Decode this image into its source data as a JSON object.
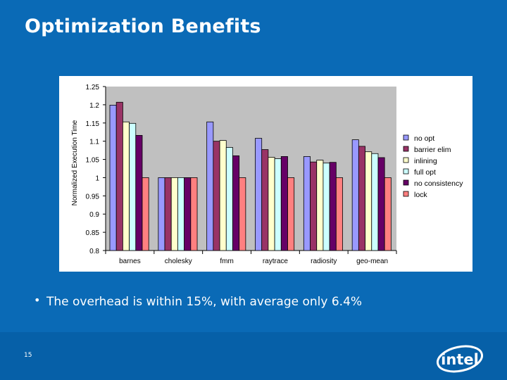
{
  "slide": {
    "title": "Optimization Benefits",
    "bullet": "The overhead is within 15%, with average only 6.4%",
    "page_number": "15",
    "logo_text": "intel"
  },
  "colors": {
    "background": "#0a6ab6",
    "footer": "#0660a8",
    "panel": "#ffffff",
    "plot_bg": "#c0c0c0"
  },
  "chart_data": {
    "type": "bar",
    "title": "",
    "xlabel": "",
    "ylabel": "Normalized Execution Time",
    "ylim": [
      0.8,
      1.25
    ],
    "yticks": [
      0.8,
      0.85,
      0.9,
      0.95,
      1,
      1.05,
      1.1,
      1.15,
      1.2,
      1.25
    ],
    "ytick_labels": [
      "0.8",
      "0.85",
      "0.9",
      "0.95",
      "1",
      "1.05",
      "1.1",
      "1.15",
      "1.2",
      "1.25"
    ],
    "grid": false,
    "legend_position": "right",
    "categories": [
      "barnes",
      "cholesky",
      "fmm",
      "raytrace",
      "radiosity",
      "geo-mean"
    ],
    "series": [
      {
        "name": "no opt",
        "color": "#9999ff",
        "values": [
          1.199,
          1.0,
          1.153,
          1.108,
          1.058,
          1.104
        ]
      },
      {
        "name": "barrier elim",
        "color": "#993366",
        "values": [
          1.207,
          1.0,
          1.1,
          1.077,
          1.043,
          1.086
        ]
      },
      {
        "name": "inlining",
        "color": "#ffffcc",
        "values": [
          1.153,
          1.0,
          1.102,
          1.056,
          1.048,
          1.071
        ]
      },
      {
        "name": "full opt",
        "color": "#ccffff",
        "values": [
          1.149,
          1.0,
          1.083,
          1.052,
          1.04,
          1.066
        ]
      },
      {
        "name": "no consistency",
        "color": "#660066",
        "values": [
          1.116,
          1.0,
          1.06,
          1.058,
          1.042,
          1.055
        ]
      },
      {
        "name": "lock",
        "color": "#ff8080",
        "values": [
          1.0,
          1.0,
          1.0,
          1.0,
          1.0,
          1.0
        ]
      }
    ]
  }
}
